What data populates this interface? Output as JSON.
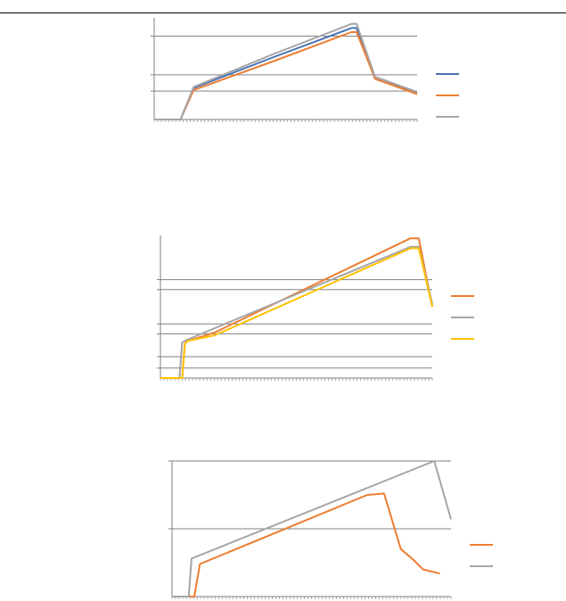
{
  "colors": {
    "blue": "#4a74b4",
    "orange": "#ed7d31",
    "gray": "#a5a5a5",
    "yellow": "#ffc000",
    "grid": "#808080",
    "axis": "#7f7f7f"
  },
  "chart_data": [
    {
      "type": "line",
      "title": "",
      "xlabel": "",
      "ylabel": "",
      "grid": true,
      "legend": "right",
      "ylim": [
        0,
        100
      ],
      "gridlines": [
        28,
        44,
        82
      ],
      "series": [
        {
          "color_key": "blue",
          "x": [
            0,
            10,
            15,
            45,
            75,
            77,
            84,
            100
          ],
          "y": [
            0,
            0,
            31,
            61,
            90,
            90,
            40,
            26
          ]
        },
        {
          "color_key": "orange",
          "x": [
            0,
            10,
            15,
            45,
            75,
            77,
            84,
            100
          ],
          "y": [
            0,
            0,
            29,
            57,
            86,
            86,
            40,
            25
          ]
        },
        {
          "color_key": "gray",
          "x": [
            0,
            10,
            15,
            45,
            75,
            77,
            84,
            100
          ],
          "y": [
            0,
            0,
            32,
            64,
            94,
            94,
            42,
            27
          ]
        }
      ]
    },
    {
      "type": "line",
      "title": "",
      "xlabel": "",
      "ylabel": "",
      "grid": true,
      "legend": "right",
      "ylim": [
        0,
        100
      ],
      "gridlines": [
        7,
        15,
        31,
        38,
        62,
        69
      ],
      "series": [
        {
          "color_key": "orange",
          "x": [
            0,
            8,
            9,
            10,
            20,
            92,
            95,
            100
          ],
          "y": [
            0,
            0,
            24,
            26,
            32,
            98,
            98,
            50
          ]
        },
        {
          "color_key": "gray",
          "x": [
            0,
            7,
            8,
            10,
            20,
            92,
            95,
            100
          ],
          "y": [
            0,
            0,
            25,
            27,
            35,
            92,
            92,
            52
          ]
        },
        {
          "color_key": "yellow",
          "x": [
            0,
            8,
            9,
            10,
            20,
            92,
            95,
            100
          ],
          "y": [
            0,
            0,
            24,
            26,
            30,
            91,
            91,
            50
          ]
        }
      ]
    },
    {
      "type": "line",
      "title": "",
      "xlabel": "",
      "ylabel": "",
      "grid": true,
      "legend": "right",
      "ylim": [
        0,
        100
      ],
      "gridlines": [
        50,
        100
      ],
      "series": [
        {
          "color_key": "orange",
          "x": [
            0,
            8,
            10,
            70,
            76,
            82,
            86,
            90,
            96
          ],
          "y": [
            0,
            0,
            24,
            75,
            76,
            35,
            28,
            20,
            17
          ]
        },
        {
          "color_key": "gray",
          "x": [
            0,
            3,
            6,
            7,
            94,
            100
          ],
          "y": [
            0,
            0,
            0,
            28,
            100,
            57
          ]
        }
      ]
    }
  ]
}
